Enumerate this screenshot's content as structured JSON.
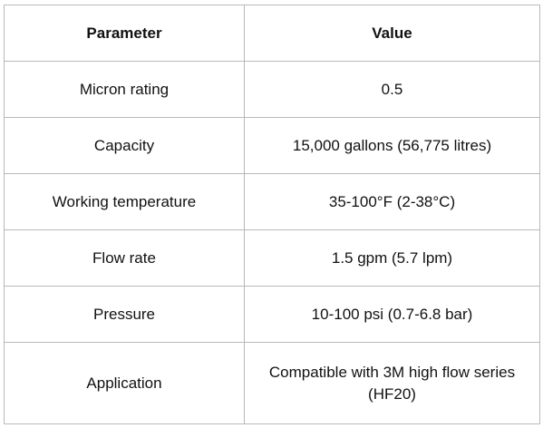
{
  "table": {
    "headers": {
      "parameter": "Parameter",
      "value": "Value"
    },
    "rows": [
      {
        "parameter": "Micron rating",
        "value": "0.5"
      },
      {
        "parameter": "Capacity",
        "value": "15,000 gallons (56,775 litres)"
      },
      {
        "parameter": "Working temperature",
        "value": "35-100°F (2-38°C)"
      },
      {
        "parameter": "Flow rate",
        "value": "1.5 gpm (5.7 lpm)"
      },
      {
        "parameter": "Pressure",
        "value": "10-100 psi (0.7-6.8 bar)"
      },
      {
        "parameter": "Application",
        "value": "Compatible with 3M high flow series (HF20)"
      }
    ]
  }
}
